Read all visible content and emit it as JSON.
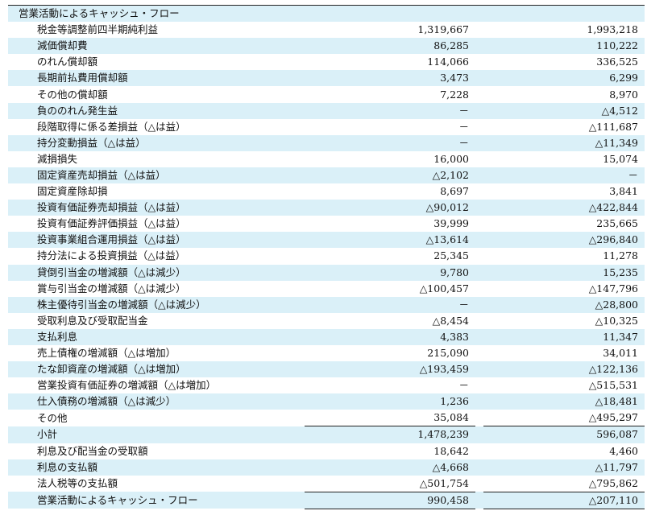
{
  "table": {
    "rows": [
      {
        "label": "営業活動によるキャッシュ・フロー",
        "values": []
      },
      {
        "label": "税金等調整前四半期純利益",
        "values": [
          "1,319,667",
          "1,993,218"
        ]
      },
      {
        "label": "減価償却費",
        "values": [
          "86,285",
          "110,222"
        ]
      },
      {
        "label": "のれん償却額",
        "values": [
          "114,066",
          "336,525"
        ]
      },
      {
        "label": "長期前払費用償却額",
        "values": [
          "3,473",
          "6,299"
        ]
      },
      {
        "label": "その他の償却額",
        "values": [
          "7,228",
          "8,970"
        ]
      },
      {
        "label": "負ののれん発生益",
        "values": [
          "－",
          "△4,512"
        ]
      },
      {
        "label": "段階取得に係る差損益（△は益）",
        "values": [
          "－",
          "△111,687"
        ]
      },
      {
        "label": "持分変動損益（△は益）",
        "values": [
          "－",
          "△11,349"
        ]
      },
      {
        "label": "減損損失",
        "values": [
          "16,000",
          "15,074"
        ]
      },
      {
        "label": "固定資産売却損益（△は益）",
        "values": [
          "△2,102",
          "－"
        ]
      },
      {
        "label": "固定資産除却損",
        "values": [
          "8,697",
          "3,841"
        ]
      },
      {
        "label": "投資有価証券売却損益（△は益）",
        "values": [
          "△90,012",
          "△422,844"
        ]
      },
      {
        "label": "投資有価証券評価損益（△は益）",
        "values": [
          "39,999",
          "235,665"
        ]
      },
      {
        "label": "投資事業組合運用損益（△は益）",
        "values": [
          "△13,614",
          "△296,840"
        ]
      },
      {
        "label": "持分法による投資損益（△は益）",
        "values": [
          "25,345",
          "11,278"
        ]
      },
      {
        "label": "貸倒引当金の増減額（△は減少）",
        "values": [
          "9,780",
          "15,235"
        ]
      },
      {
        "label": "賞与引当金の増減額（△は減少）",
        "values": [
          "△100,457",
          "△147,796"
        ]
      },
      {
        "label": "株主優待引当金の増減額（△は減少）",
        "values": [
          "－",
          "△28,800"
        ]
      },
      {
        "label": "受取利息及び受取配当金",
        "values": [
          "△8,454",
          "△10,325"
        ]
      },
      {
        "label": "支払利息",
        "values": [
          "4,383",
          "11,347"
        ]
      },
      {
        "label": "売上債権の増減額（△は増加）",
        "values": [
          "215,090",
          "34,011"
        ]
      },
      {
        "label": "たな卸資産の増減額（△は増加）",
        "values": [
          "△193,459",
          "△122,136"
        ]
      },
      {
        "label": "営業投資有価証券の増減額（△は増加）",
        "values": [
          "－",
          "△515,531"
        ]
      },
      {
        "label": "仕入債務の増減額（△は減少）",
        "values": [
          "1,236",
          "△18,481"
        ]
      },
      {
        "label": "その他",
        "values": [
          "35,084",
          "△495,297"
        ]
      },
      {
        "label": "小計",
        "values": [
          "1,478,239",
          "596,087"
        ]
      },
      {
        "label": "利息及び配当金の受取額",
        "values": [
          "18,642",
          "4,460"
        ]
      },
      {
        "label": "利息の支払額",
        "values": [
          "△4,668",
          "△11,797"
        ]
      },
      {
        "label": "法人税等の支払額",
        "values": [
          "△501,754",
          "△795,862"
        ]
      },
      {
        "label": "営業活動によるキャッシュ・フロー",
        "values": [
          "990,458",
          "△207,110"
        ]
      }
    ]
  }
}
